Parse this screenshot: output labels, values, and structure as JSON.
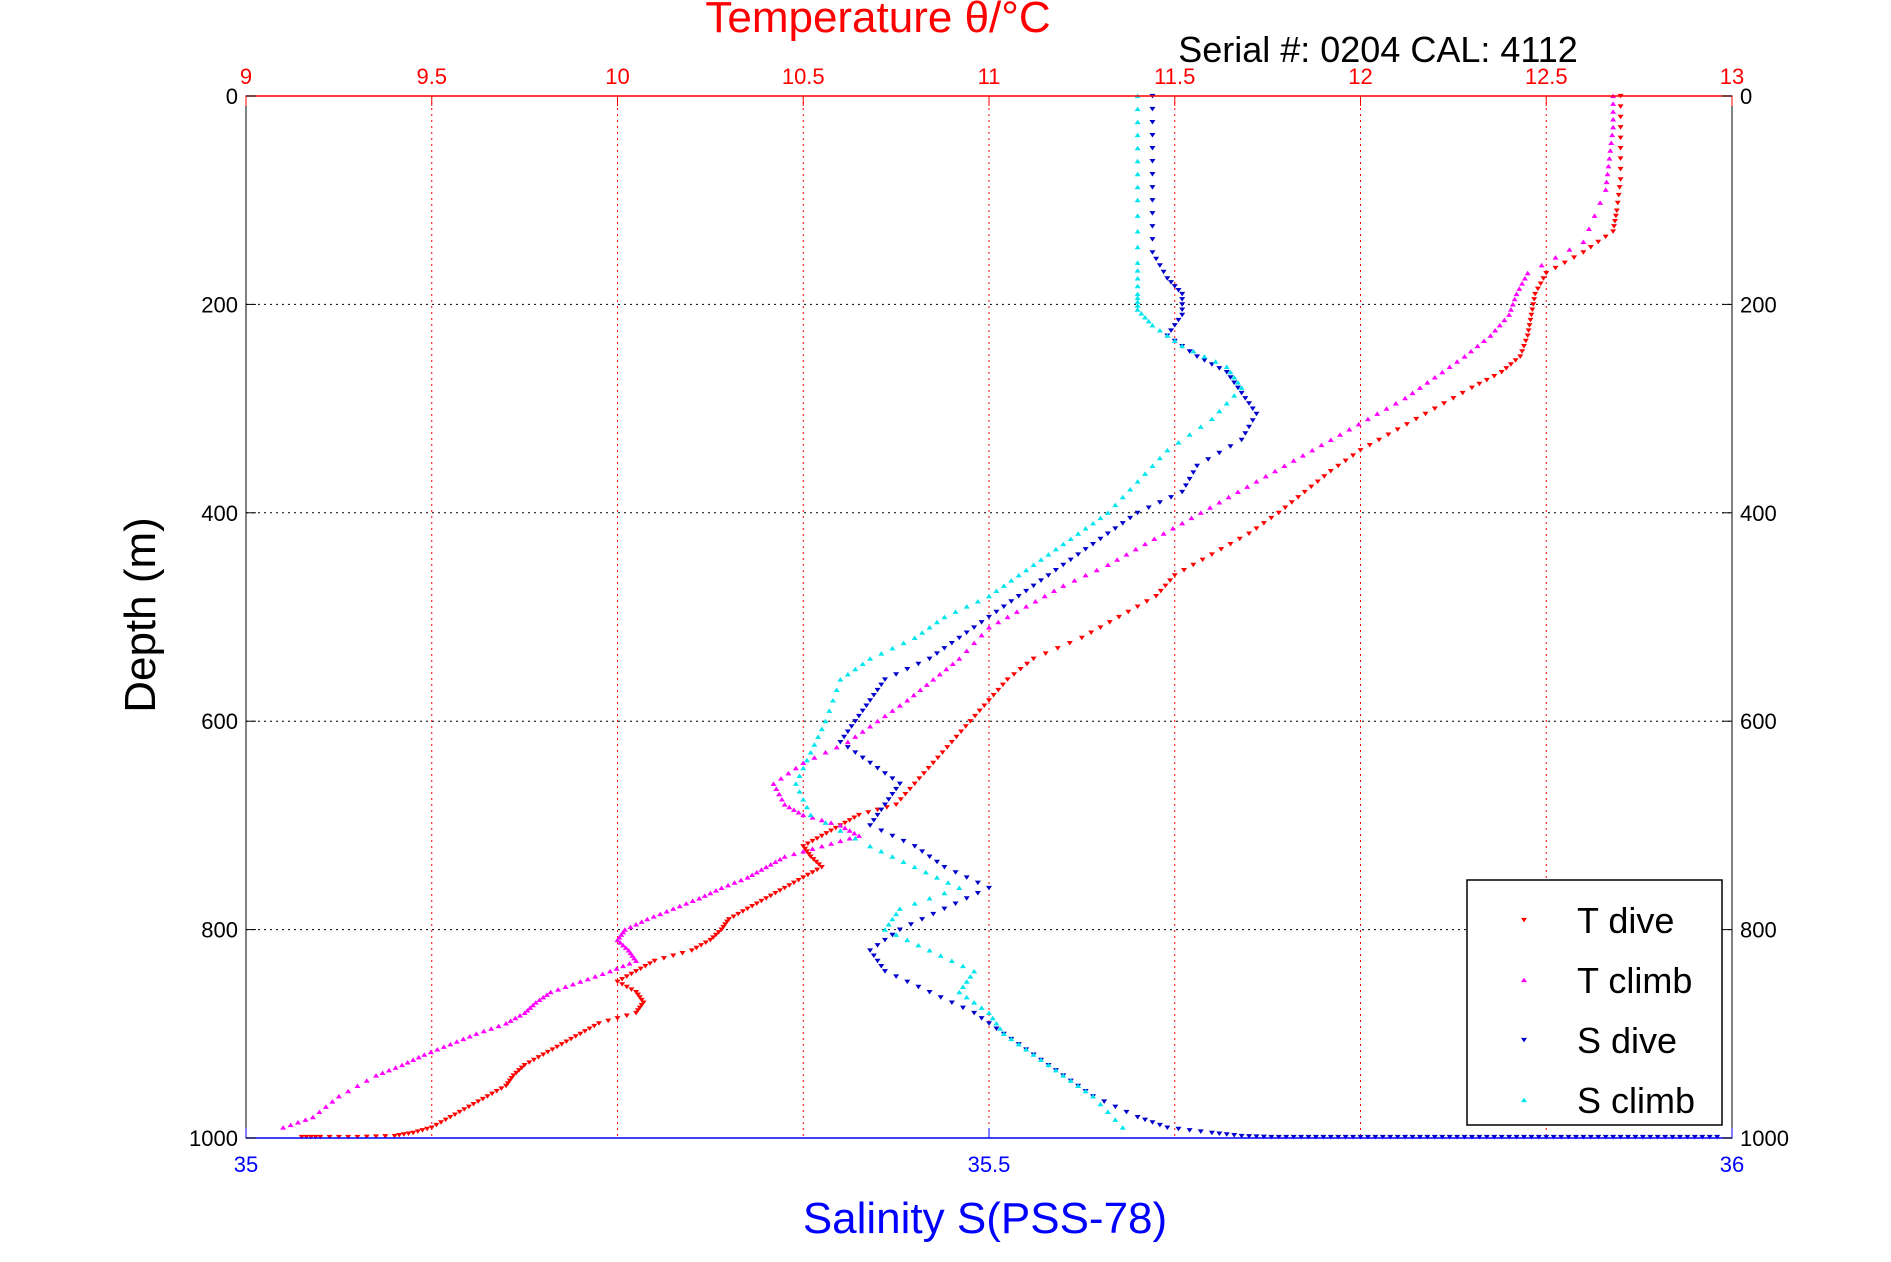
{
  "chart_data": {
    "type": "scatter",
    "title": "Temperature θ/°C",
    "subtitle": "Serial #: 0204  CAL: 4112",
    "xlabel_bottom": "Salinity S(PSS-78)",
    "ylabel": "Depth (m)",
    "x_top": {
      "label": "Temperature θ/°C",
      "lim": [
        9,
        13
      ],
      "ticks": [
        "9",
        "9.5",
        "10",
        "10.5",
        "11",
        "11.5",
        "12",
        "12.5",
        "13"
      ]
    },
    "x_bottom": {
      "label": "Salinity S(PSS-78)",
      "lim": [
        35,
        36
      ],
      "ticks": [
        "35",
        "35.5",
        "36"
      ]
    },
    "y": {
      "lim": [
        0,
        1000
      ],
      "reversed": true,
      "ticks": [
        "0",
        "200",
        "400",
        "600",
        "800",
        "1000"
      ]
    },
    "grid": true,
    "legend_position": "bottom-right",
    "colors": {
      "temp_axis": "#ff0000",
      "sal_axis": "#0000ff",
      "t_dive": "#ff0000",
      "t_climb": "#ff00ff",
      "s_dive": "#0000cc",
      "s_climb": "#00e5ee"
    },
    "series": [
      {
        "name": "T dive",
        "axis": "temperature",
        "marker": "triangle-down",
        "color": "#ff0000",
        "x": [
          12.7,
          12.7,
          12.7,
          12.69,
          12.68,
          12.6,
          12.5,
          12.47,
          12.46,
          12.45,
          12.43,
          12.38,
          12.3,
          12.2,
          12.1,
          12.0,
          11.92,
          11.85,
          11.78,
          11.7,
          11.6,
          11.5,
          11.45,
          11.35,
          11.25,
          11.12,
          11.05,
          11.0,
          10.95,
          10.9,
          10.85,
          10.8,
          10.75,
          10.65,
          10.6,
          10.55,
          10.5,
          10.52,
          10.55,
          10.5,
          10.45,
          10.4,
          10.35,
          10.3,
          10.28,
          10.25,
          10.2,
          10.1,
          10.05,
          10.0,
          10.05,
          10.07,
          10.05,
          9.95,
          9.9,
          9.85,
          9.8,
          9.75,
          9.72,
          9.7,
          9.65,
          9.6,
          9.55,
          9.5,
          9.45,
          9.4,
          9.3,
          9.2,
          9.15
        ],
        "y": [
          0,
          40,
          80,
          110,
          130,
          150,
          170,
          190,
          210,
          230,
          250,
          265,
          280,
          300,
          320,
          340,
          360,
          380,
          400,
          420,
          440,
          460,
          480,
          500,
          520,
          540,
          560,
          580,
          600,
          620,
          640,
          660,
          680,
          690,
          700,
          710,
          720,
          730,
          740,
          750,
          760,
          770,
          780,
          790,
          800,
          810,
          820,
          830,
          840,
          850,
          860,
          870,
          880,
          890,
          900,
          910,
          920,
          930,
          940,
          950,
          960,
          970,
          980,
          990,
          995,
          998,
          999,
          999,
          999
        ]
      },
      {
        "name": "T climb",
        "axis": "temperature",
        "marker": "triangle-up",
        "color": "#ff00ff",
        "x": [
          12.68,
          12.68,
          12.67,
          12.66,
          12.6,
          12.45,
          12.42,
          12.4,
          12.35,
          12.28,
          12.2,
          12.12,
          12.02,
          11.92,
          11.82,
          11.72,
          11.62,
          11.52,
          11.42,
          11.32,
          11.2,
          11.1,
          11.0,
          10.92,
          10.85,
          10.78,
          10.7,
          10.62,
          10.5,
          10.42,
          10.45,
          10.5,
          10.6,
          10.65,
          10.55,
          10.45,
          10.4,
          10.35,
          10.28,
          10.22,
          10.15,
          10.08,
          10.02,
          10.0,
          10.03,
          10.05,
          9.98,
          9.9,
          9.82,
          9.78,
          9.75,
          9.7,
          9.62,
          9.55,
          9.48,
          9.42,
          9.35,
          9.25,
          9.18,
          9.1
        ],
        "y": [
          0,
          30,
          60,
          90,
          140,
          170,
          190,
          210,
          230,
          250,
          270,
          290,
          310,
          330,
          350,
          370,
          390,
          410,
          430,
          450,
          470,
          490,
          510,
          540,
          560,
          580,
          600,
          620,
          640,
          660,
          680,
          690,
          700,
          710,
          720,
          730,
          740,
          750,
          760,
          770,
          780,
          790,
          800,
          810,
          820,
          830,
          840,
          850,
          860,
          870,
          880,
          890,
          900,
          910,
          920,
          930,
          940,
          960,
          980,
          990
        ]
      },
      {
        "name": "S dive",
        "axis": "salinity",
        "marker": "triangle-down",
        "color": "#0000cc",
        "x": [
          35.61,
          35.61,
          35.61,
          35.61,
          35.62,
          35.63,
          35.63,
          35.62,
          35.64,
          35.66,
          35.67,
          35.68,
          35.67,
          35.64,
          35.63,
          35.6,
          35.58,
          35.56,
          35.54,
          35.52,
          35.5,
          35.48,
          35.46,
          35.43,
          35.42,
          35.41,
          35.4,
          35.42,
          35.44,
          35.43,
          35.42,
          35.45,
          35.47,
          35.5,
          35.47,
          35.44,
          35.42,
          35.43,
          35.46,
          35.49,
          35.51,
          35.53,
          35.55,
          35.57,
          35.6,
          35.62,
          35.65,
          35.67,
          35.69,
          35.71,
          35.73,
          35.75,
          35.77,
          35.79,
          35.81,
          35.83,
          35.85,
          35.87,
          35.89,
          35.91,
          35.93,
          35.95,
          35.97,
          35.99
        ],
        "y": [
          0,
          50,
          100,
          150,
          175,
          190,
          210,
          230,
          250,
          265,
          285,
          305,
          330,
          355,
          380,
          400,
          420,
          440,
          460,
          480,
          500,
          520,
          540,
          560,
          580,
          600,
          620,
          640,
          660,
          680,
          700,
          720,
          740,
          760,
          780,
          800,
          820,
          840,
          860,
          880,
          900,
          920,
          940,
          960,
          980,
          990,
          995,
          998,
          999,
          999,
          999,
          999,
          999,
          999,
          999,
          999,
          999,
          999,
          999,
          999,
          999,
          999,
          999,
          999
        ]
      },
      {
        "name": "S climb",
        "axis": "salinity",
        "marker": "triangle-up",
        "color": "#00e5ee",
        "x": [
          35.6,
          35.6,
          35.6,
          35.6,
          35.6,
          35.6,
          35.61,
          35.63,
          35.66,
          35.67,
          35.65,
          35.62,
          35.6,
          35.58,
          35.56,
          35.54,
          35.52,
          35.5,
          35.47,
          35.45,
          35.42,
          35.4,
          35.39,
          35.38,
          35.37,
          35.38,
          35.42,
          35.45,
          35.48,
          35.44,
          35.43,
          35.46,
          35.49,
          35.48,
          35.5,
          35.51,
          35.53,
          35.55,
          35.57,
          35.59
        ],
        "y": [
          0,
          50,
          100,
          160,
          190,
          205,
          220,
          240,
          260,
          280,
          310,
          340,
          370,
          400,
          420,
          440,
          460,
          480,
          500,
          520,
          540,
          560,
          600,
          630,
          660,
          690,
          720,
          740,
          760,
          780,
          800,
          820,
          840,
          860,
          880,
          900,
          920,
          940,
          960,
          990
        ]
      }
    ]
  }
}
